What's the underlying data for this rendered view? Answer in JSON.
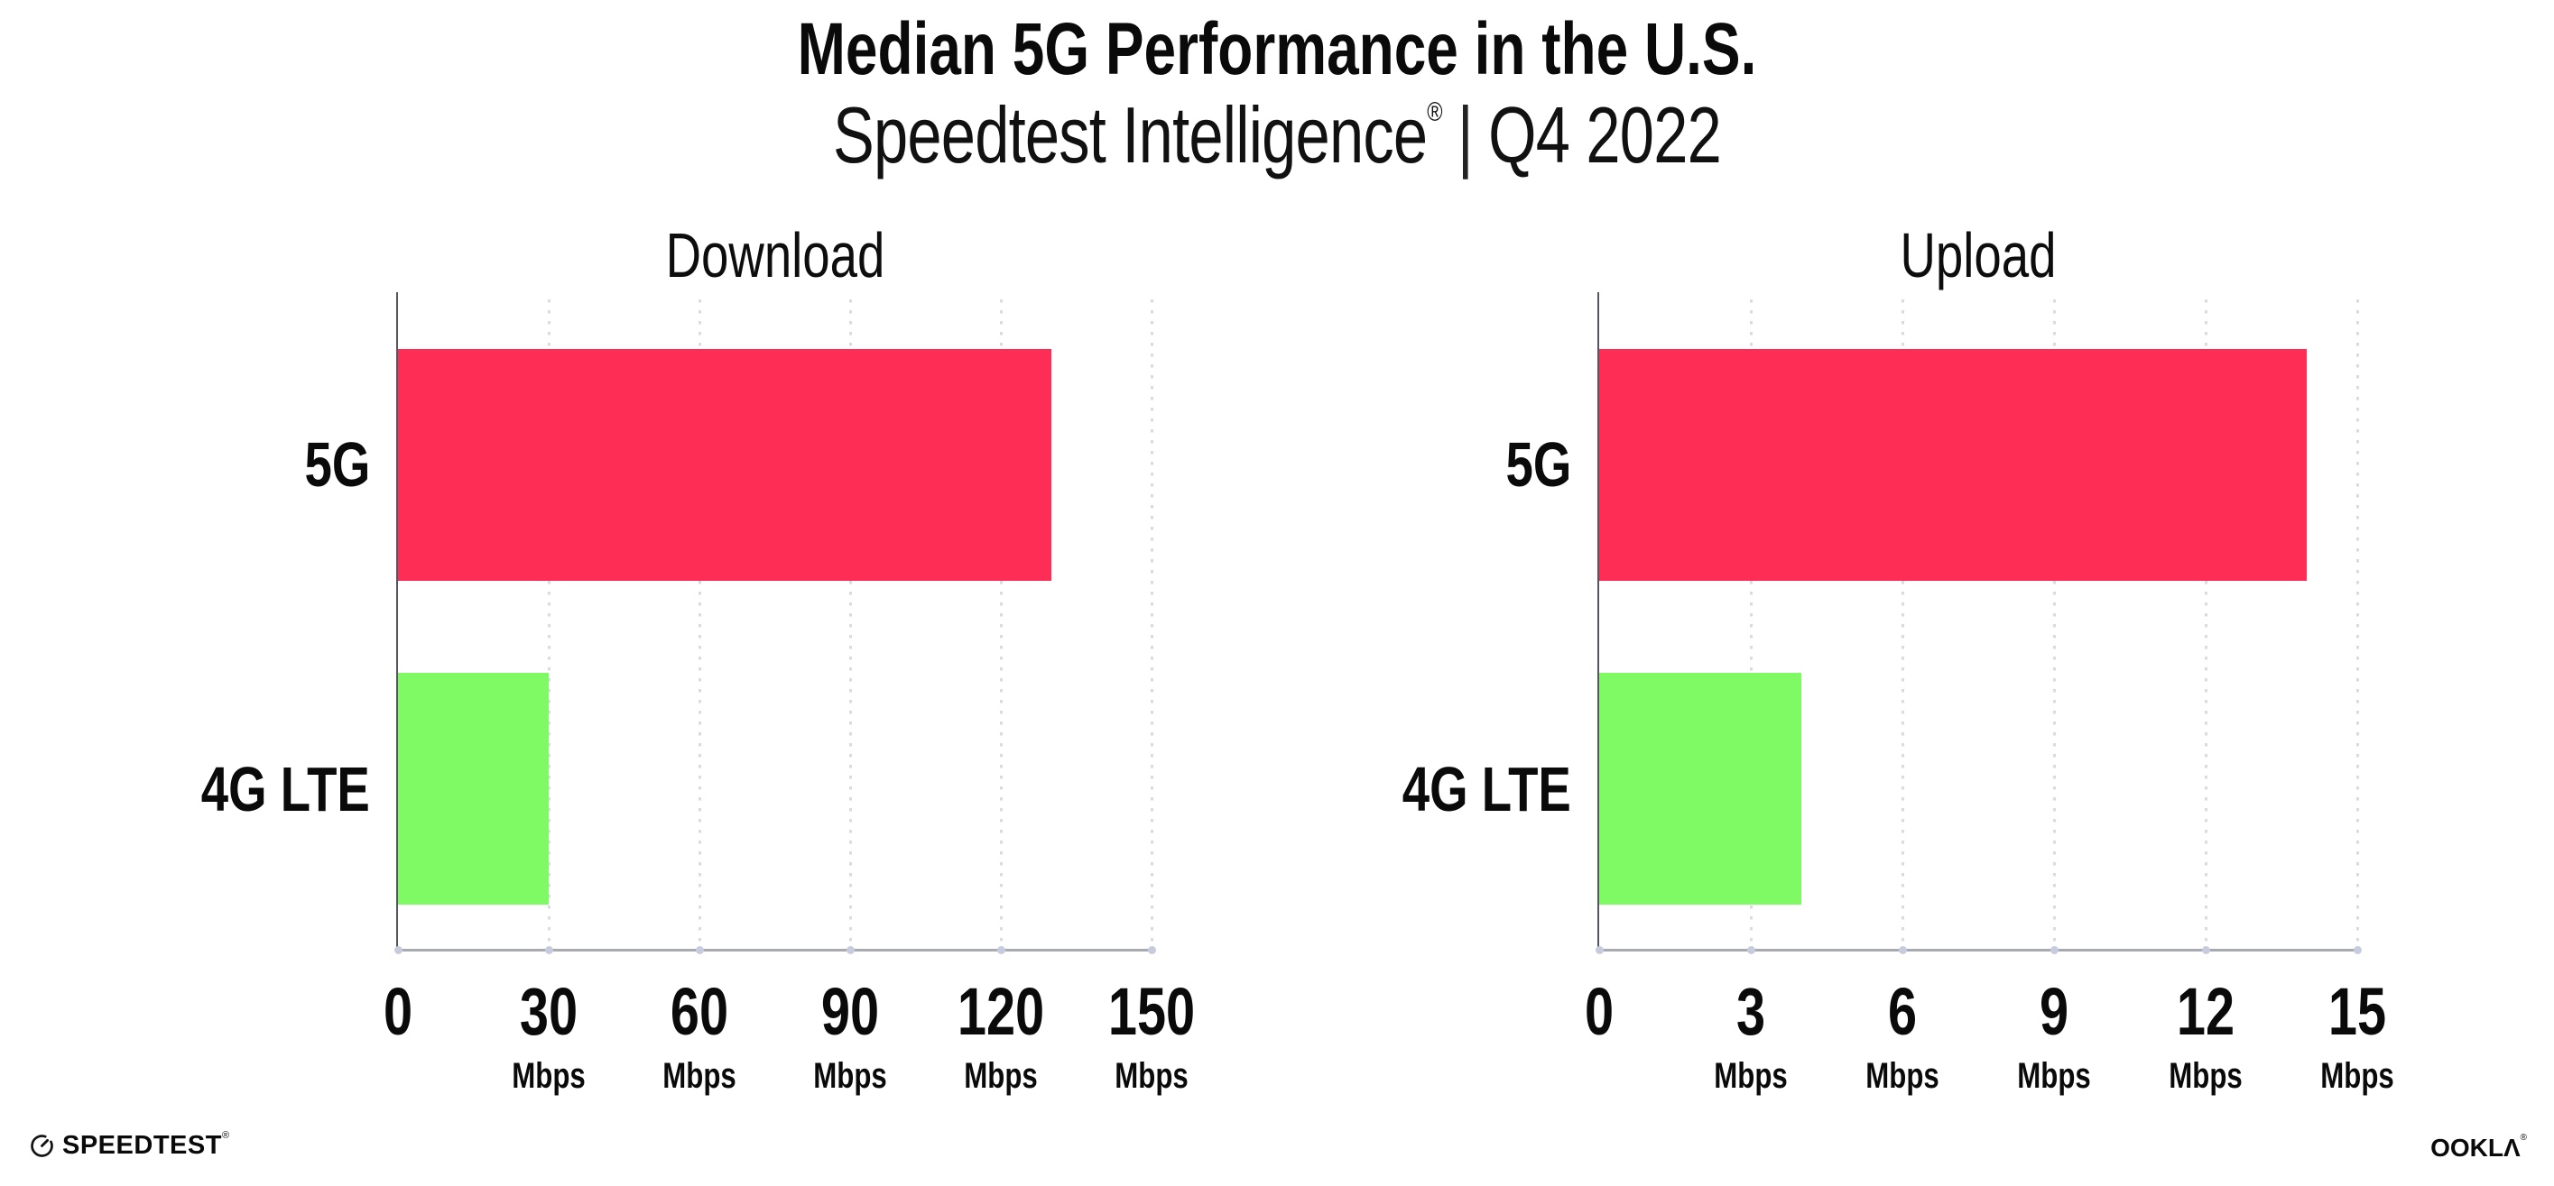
{
  "title": "Median 5G Performance in the U.S.",
  "subtitle": {
    "brand": "Speedtest Intelligence",
    "reg_mark": "®",
    "separator": "|",
    "period": "Q4 2022"
  },
  "colors": {
    "bar_5g": "#FD2D55",
    "bar_4g": "#80FA64",
    "y_axis": "#55555F",
    "x_axis": "#A9A9B2",
    "gridline": "#D9DAE6",
    "tick_dot": "#C7CBDE",
    "text": "#0A0A0A"
  },
  "chart_data": [
    {
      "type": "bar",
      "orientation": "horizontal",
      "title": "Download",
      "categories": [
        "5G",
        "4G LTE"
      ],
      "values": [
        130,
        30
      ],
      "unit": "Mbps",
      "xlim": [
        0,
        150
      ],
      "x_ticks": [
        0,
        30,
        60,
        90,
        120,
        150
      ],
      "x_tick_unit": "Mbps",
      "grid": "vertical-dotted",
      "legend": "none",
      "bar_colors": [
        "#FD2D55",
        "#80FA64"
      ]
    },
    {
      "type": "bar",
      "orientation": "horizontal",
      "title": "Upload",
      "categories": [
        "5G",
        "4G LTE"
      ],
      "values": [
        14,
        4
      ],
      "unit": "Mbps",
      "xlim": [
        0,
        15
      ],
      "x_ticks": [
        0,
        3,
        6,
        9,
        12,
        15
      ],
      "x_tick_unit": "Mbps",
      "grid": "vertical-dotted",
      "legend": "none",
      "bar_colors": [
        "#FD2D55",
        "#80FA64"
      ]
    }
  ],
  "footer": {
    "speedtest_text": "SPEEDTEST",
    "speedtest_reg": "®",
    "gauge_icon": "speedtest-gauge",
    "ookla_text": "OOKLΛ",
    "ookla_reg": "®"
  }
}
